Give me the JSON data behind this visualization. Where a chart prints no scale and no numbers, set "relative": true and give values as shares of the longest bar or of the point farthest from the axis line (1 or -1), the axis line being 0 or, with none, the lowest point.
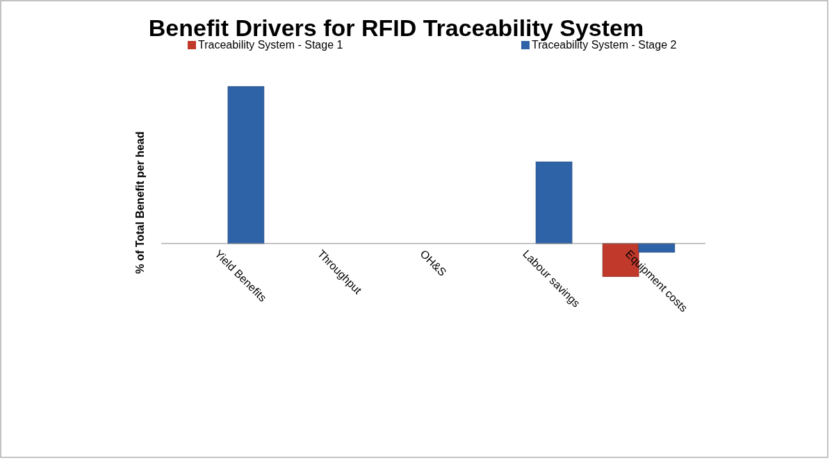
{
  "chart_data": {
    "type": "bar",
    "title": "Benefit Drivers for RFID Traceability System",
    "ylabel": "% of Total Benefit per head",
    "categories": [
      "Yield Benefits",
      "Throughput",
      "OH&S",
      "Labour savings",
      "Equipment costs"
    ],
    "relative": true,
    "legend": "top",
    "series": [
      {
        "name": "Traceability System - Stage 1",
        "color": "#c0392b",
        "values": [
          0,
          0,
          0,
          0,
          -0.21
        ]
      },
      {
        "name": "Traceability System - Stage 2",
        "color": "#2f63a8",
        "values": [
          1,
          0,
          0,
          0.52,
          -0.055
        ]
      }
    ]
  }
}
